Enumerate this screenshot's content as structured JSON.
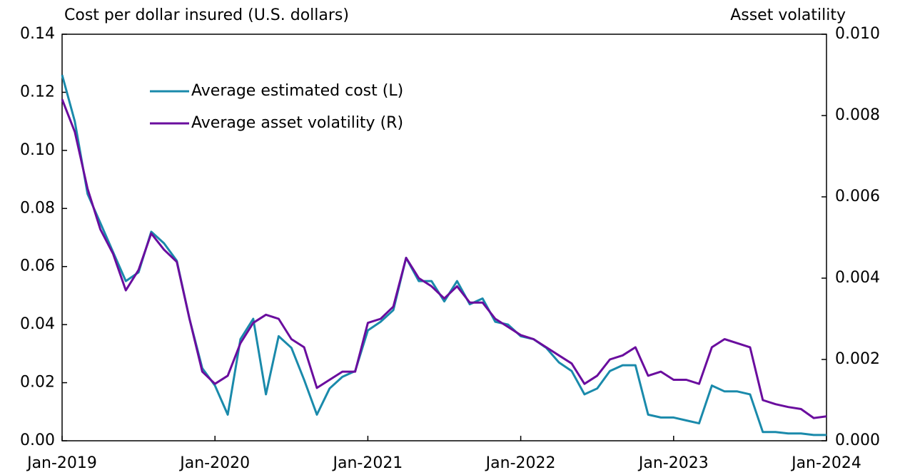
{
  "chart_data": {
    "type": "line",
    "y_axis_label": "Cost per dollar insured (U.S. dollars)",
    "y2_axis_label": "Asset volatility",
    "x": [
      "Jan-2019",
      "Feb-2019",
      "Mar-2019",
      "Apr-2019",
      "May-2019",
      "Jun-2019",
      "Jul-2019",
      "Aug-2019",
      "Sep-2019",
      "Oct-2019",
      "Nov-2019",
      "Dec-2019",
      "Jan-2020",
      "Feb-2020",
      "Mar-2020",
      "Apr-2020",
      "May-2020",
      "Jun-2020",
      "Jul-2020",
      "Aug-2020",
      "Sep-2020",
      "Oct-2020",
      "Nov-2020",
      "Dec-2020",
      "Jan-2021",
      "Feb-2021",
      "Mar-2021",
      "Apr-2021",
      "May-2021",
      "Jun-2021",
      "Jul-2021",
      "Aug-2021",
      "Sep-2021",
      "Oct-2021",
      "Nov-2021",
      "Dec-2021",
      "Jan-2022",
      "Feb-2022",
      "Mar-2022",
      "Apr-2022",
      "May-2022",
      "Jun-2022",
      "Jul-2022",
      "Aug-2022",
      "Sep-2022",
      "Oct-2022",
      "Nov-2022",
      "Dec-2022",
      "Jan-2023",
      "Feb-2023",
      "Mar-2023",
      "Apr-2023",
      "May-2023",
      "Jun-2023",
      "Jul-2023",
      "Aug-2023",
      "Sep-2023",
      "Oct-2023",
      "Nov-2023",
      "Dec-2023",
      "Jan-2024"
    ],
    "series": [
      {
        "name": "Average estimated cost (L)",
        "color": "#1a8aab",
        "axis": "y",
        "values": [
          0.126,
          0.11,
          0.085,
          0.075,
          0.065,
          0.055,
          0.058,
          0.072,
          0.068,
          0.062,
          0.042,
          0.025,
          0.019,
          0.009,
          0.035,
          0.042,
          0.016,
          0.036,
          0.032,
          0.021,
          0.009,
          0.018,
          0.022,
          0.024,
          0.038,
          0.041,
          0.045,
          0.063,
          0.055,
          0.055,
          0.048,
          0.055,
          0.047,
          0.049,
          0.041,
          0.04,
          0.036,
          0.035,
          0.032,
          0.027,
          0.024,
          0.016,
          0.018,
          0.024,
          0.026,
          0.026,
          0.009,
          0.008,
          0.008,
          0.007,
          0.006,
          0.019,
          0.017,
          0.017,
          0.016,
          0.003,
          0.003,
          0.0025,
          0.0025,
          0.002,
          0.002
        ]
      },
      {
        "name": "Average asset volatility (R)",
        "color": "#6a0d9e",
        "axis": "y2",
        "values": [
          0.0084,
          0.0076,
          0.0062,
          0.0052,
          0.0046,
          0.0037,
          0.0042,
          0.0051,
          0.0047,
          0.0044,
          0.003,
          0.0017,
          0.0014,
          0.0016,
          0.0024,
          0.0029,
          0.0031,
          0.003,
          0.0025,
          0.0023,
          0.0013,
          0.0015,
          0.0017,
          0.0017,
          0.0029,
          0.003,
          0.0033,
          0.0045,
          0.004,
          0.0038,
          0.0035,
          0.0038,
          0.0034,
          0.0034,
          0.003,
          0.0028,
          0.0026,
          0.0025,
          0.0023,
          0.0021,
          0.0019,
          0.0014,
          0.0016,
          0.002,
          0.0021,
          0.0023,
          0.0016,
          0.0017,
          0.0015,
          0.0015,
          0.0014,
          0.0023,
          0.0025,
          0.0024,
          0.0023,
          0.001,
          0.0009,
          0.00083,
          0.00078,
          0.00056,
          0.0006
        ]
      }
    ],
    "ylim": [
      0,
      0.14
    ],
    "yticks": [
      {
        "value": 0,
        "label": "0.00"
      },
      {
        "value": 0.02,
        "label": "0.02"
      },
      {
        "value": 0.04,
        "label": "0.04"
      },
      {
        "value": 0.06,
        "label": "0.06"
      },
      {
        "value": 0.08,
        "label": "0.08"
      },
      {
        "value": 0.1,
        "label": "0.10"
      },
      {
        "value": 0.12,
        "label": "0.12"
      },
      {
        "value": 0.14,
        "label": "0.14"
      }
    ],
    "y2lim": [
      0,
      0.01
    ],
    "y2ticks": [
      {
        "value": 0,
        "label": "0.000"
      },
      {
        "value": 0.002,
        "label": "0.002"
      },
      {
        "value": 0.004,
        "label": "0.004"
      },
      {
        "value": 0.006,
        "label": "0.006"
      },
      {
        "value": 0.008,
        "label": "0.008"
      },
      {
        "value": 0.01,
        "label": "0.010"
      }
    ],
    "grid": false
  }
}
